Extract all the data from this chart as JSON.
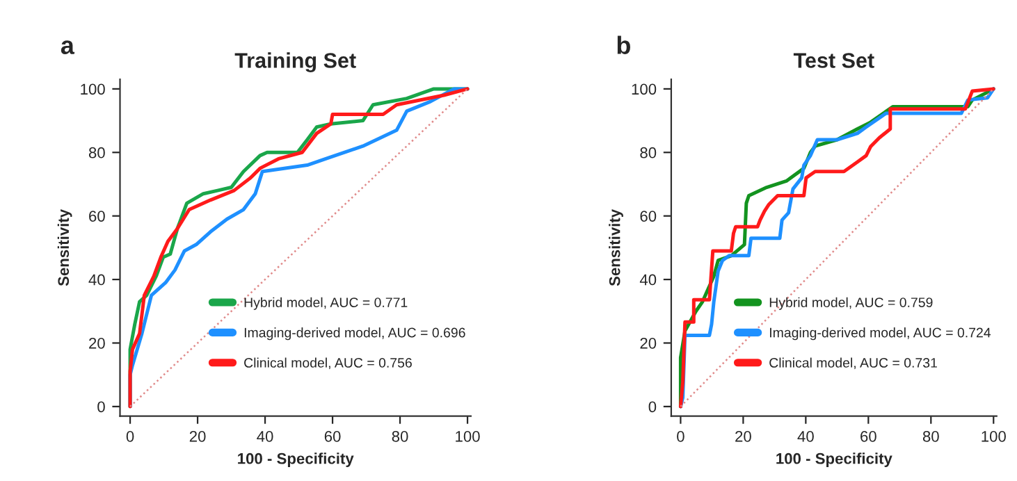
{
  "chart_data": [
    {
      "type": "line",
      "title": "Training Set",
      "xlabel": "100 - Specificity",
      "ylabel": "Sensitivity",
      "annotations": [
        "a"
      ],
      "xlim": [
        -3,
        101
      ],
      "ylim": [
        -3,
        103
      ],
      "xticks": [
        0,
        20,
        40,
        60,
        80,
        100
      ],
      "yticks": [
        0,
        20,
        40,
        60,
        80,
        100
      ],
      "grid": false,
      "legend": "bottom right",
      "series": [
        {
          "name": "Hybrid model, AUC = 0.771",
          "color": "#1aa64a",
          "x": [
            0,
            0,
            1.4,
            2.8,
            4.9,
            7.7,
            9.8,
            11.9,
            14,
            16.8,
            21.7,
            25.9,
            30,
            33.6,
            38.5,
            40.6,
            49.6,
            52.5,
            55.3,
            59.5,
            69,
            72,
            82,
            90,
            100
          ],
          "values": [
            0,
            18,
            26,
            33,
            35,
            41,
            47,
            48,
            56,
            64,
            67,
            68,
            69,
            74,
            79,
            80,
            80,
            84,
            88,
            89,
            90,
            95,
            97,
            100,
            100
          ]
        },
        {
          "name": "Imaging-derived model, AUC = 0.696",
          "color": "#1e90ff",
          "x": [
            0,
            0,
            0.7,
            3.5,
            6.3,
            10.5,
            13.3,
            16.1,
            19.6,
            23.8,
            28.7,
            33.6,
            37.1,
            39.2,
            52.5,
            58,
            69,
            79,
            82,
            89,
            96,
            100
          ],
          "values": [
            0,
            10,
            13,
            23,
            35,
            39,
            43,
            49,
            51,
            55,
            59,
            62,
            67,
            74,
            76,
            78,
            82,
            87,
            93,
            96,
            100,
            100
          ]
        },
        {
          "name": "Clinical model, AUC = 0.756",
          "color": "#ff1a1a",
          "x": [
            0,
            0,
            0.7,
            2.8,
            4.2,
            7,
            9.1,
            11.2,
            14,
            17.5,
            23.8,
            30.8,
            35.7,
            38.5,
            44,
            51,
            55.3,
            59.5,
            60,
            75,
            79,
            93,
            100
          ],
          "values": [
            0,
            11,
            18,
            23,
            35,
            41,
            47,
            52,
            56,
            62,
            65,
            68,
            72,
            75,
            78,
            80,
            86,
            89,
            92,
            92,
            95,
            98,
            100
          ]
        },
        {
          "color": "#e08a8a",
          "line_style": "dotted",
          "x": [
            0,
            100
          ],
          "values": [
            0,
            100
          ]
        }
      ]
    },
    {
      "type": "line",
      "title": "Test Set",
      "xlabel": "100 - Specificity",
      "ylabel": "Sensitivity",
      "annotations": [
        "b"
      ],
      "xlim": [
        -3,
        101
      ],
      "ylim": [
        -3,
        103
      ],
      "xticks": [
        0,
        20,
        40,
        60,
        80,
        100
      ],
      "yticks": [
        0,
        20,
        40,
        60,
        80,
        100
      ],
      "grid": false,
      "legend": "bottom right",
      "series": [
        {
          "name": "Hybrid model, AUC = 0.759",
          "color": "#13931f",
          "x": [
            0,
            0,
            1.4,
            4.9,
            7,
            10.6,
            12,
            16.2,
            20.4,
            21,
            21.8,
            27.5,
            33.8,
            39.4,
            41.5,
            43,
            50,
            56.5,
            60.7,
            67.8,
            91.8,
            93.2,
            98.8,
            100
          ],
          "values": [
            0,
            15.4,
            23.8,
            30,
            33,
            41,
            46,
            47.5,
            51,
            64,
            66.4,
            69,
            71,
            75,
            80,
            82,
            84,
            87.4,
            89.5,
            94.4,
            94.4,
            96.5,
            99.3,
            100
          ]
        },
        {
          "name": "Imaging-derived model, AUC = 0.724",
          "color": "#1e90ff",
          "x": [
            0,
            0.7,
            1.4,
            9.2,
            9.9,
            10.6,
            12,
            13.4,
            15.5,
            21.8,
            22.5,
            31.7,
            32.4,
            34.5,
            35.9,
            38.7,
            39.4,
            41.5,
            43.7,
            50,
            56.5,
            59.3,
            65.6,
            89.7,
            91.8,
            98.1,
            100
          ],
          "values": [
            0,
            2.8,
            22.4,
            22.4,
            25.9,
            32.9,
            42.7,
            46,
            47.5,
            47.5,
            53,
            53,
            58.7,
            61,
            68.5,
            72,
            76,
            79,
            84,
            84,
            86,
            88,
            92.3,
            92.3,
            96.5,
            97.2,
            100
          ]
        },
        {
          "name": "Clinical model, AUC = 0.731",
          "color": "#ff1a1a",
          "x": [
            0,
            0.7,
            1.4,
            4.2,
            4.2,
            9.2,
            10.3,
            16.2,
            16.9,
            17.6,
            24.6,
            25.4,
            26.8,
            28.2,
            31,
            39.4,
            40.1,
            43,
            52.2,
            56.5,
            59.3,
            60.7,
            63.5,
            67,
            67,
            91,
            93.2,
            100
          ],
          "values": [
            0,
            7.7,
            26.6,
            26.6,
            33.6,
            33.6,
            49,
            49,
            54.5,
            56.6,
            56.6,
            58.7,
            61.5,
            63.6,
            66.4,
            66.4,
            72,
            74,
            74,
            77,
            79,
            81.8,
            84.6,
            87.4,
            93.7,
            93.7,
            99.3,
            100
          ]
        },
        {
          "color": "#e08a8a",
          "line_style": "dotted",
          "x": [
            0,
            100
          ],
          "values": [
            0,
            100
          ]
        }
      ]
    }
  ]
}
